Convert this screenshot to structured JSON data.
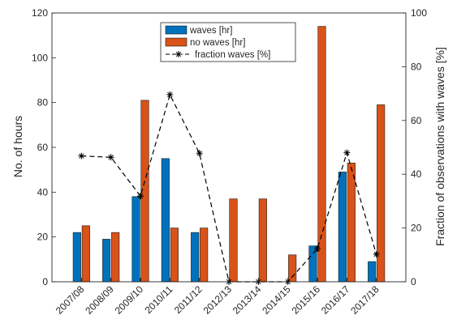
{
  "chart_data": {
    "type": "bar",
    "categories": [
      "2007/08",
      "2008/09",
      "2009/10",
      "2010/11",
      "2011/12",
      "2012/13",
      "2013/14",
      "2014/15",
      "2015/16",
      "2016/17",
      "2017/18"
    ],
    "series": [
      {
        "name": "waves [hr]",
        "type": "bar",
        "axis": "left",
        "color": "#0072BD",
        "values": [
          22,
          19,
          38,
          55,
          22,
          0,
          0,
          0,
          16,
          49,
          9
        ]
      },
      {
        "name": "no waves [hr]",
        "type": "bar",
        "axis": "left",
        "color": "#D95319",
        "values": [
          25,
          22,
          81,
          24,
          24,
          37,
          37,
          12,
          114,
          53,
          79
        ]
      },
      {
        "name": "fraction waves [%]",
        "type": "line",
        "axis": "right",
        "color": "#000000",
        "line_style": "dashed",
        "marker": "asterisk",
        "values": [
          46.8,
          46.3,
          31.9,
          69.6,
          47.8,
          0,
          0,
          0,
          12.3,
          48.0,
          10.2
        ]
      }
    ],
    "ylabel": "No. of hours",
    "ylabel_right": "Fraction of observations with waves [%]",
    "ylim": [
      0,
      120
    ],
    "yticks": [
      0,
      20,
      40,
      60,
      80,
      100,
      120
    ],
    "ylim_right": [
      0,
      100
    ],
    "yticks_right": [
      0,
      20,
      40,
      60,
      80,
      100
    ],
    "grid": false,
    "legend_position": "top-center"
  }
}
